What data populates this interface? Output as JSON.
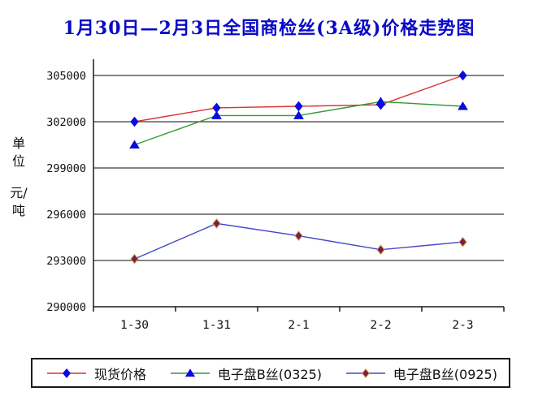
{
  "title": {
    "text": "1月30日—2月3日全国商检丝(3A级)价格走势图",
    "color": "#0909c8"
  },
  "y_axis_unit": {
    "top": "单位",
    "bottom": "元/吨"
  },
  "chart_data": {
    "type": "line",
    "categories": [
      "1-30",
      "1-31",
      "2-1",
      "2-2",
      "2-3"
    ],
    "series": [
      {
        "name": "现货价格",
        "values": [
          302000,
          302900,
          303000,
          303100,
          305000
        ],
        "line_color": "#d93333",
        "marker": "diamond",
        "marker_color": "#0a0ae0",
        "marker_edge": "#0a0ae0"
      },
      {
        "name": "电子盘B丝(0325)",
        "values": [
          300500,
          302400,
          302400,
          303300,
          303000
        ],
        "line_color": "#339933",
        "marker": "triangle",
        "marker_color": "#0a0ae0",
        "marker_edge": "#0a0ae0"
      },
      {
        "name": "电子盘B丝(0925)",
        "values": [
          293100,
          295400,
          294600,
          293700,
          294200
        ],
        "line_color": "#4545cc",
        "marker": "diamond",
        "marker_color": "#7a1f3d",
        "marker_edge": "#c89a4a"
      }
    ],
    "ylim": [
      290000,
      305000
    ],
    "ytick_step": 3000,
    "ytick_labels": [
      "305000",
      "302000",
      "299000",
      "296000",
      "293000",
      "290000"
    ],
    "xlabel": "",
    "ylabel": "单位 元/吨",
    "grid": true,
    "legend_position": "bottom",
    "colors": {
      "gridline": "#3a3a3a",
      "axis": "#1a1a1a",
      "background": "#ffffff",
      "title": "#0909c8"
    }
  }
}
